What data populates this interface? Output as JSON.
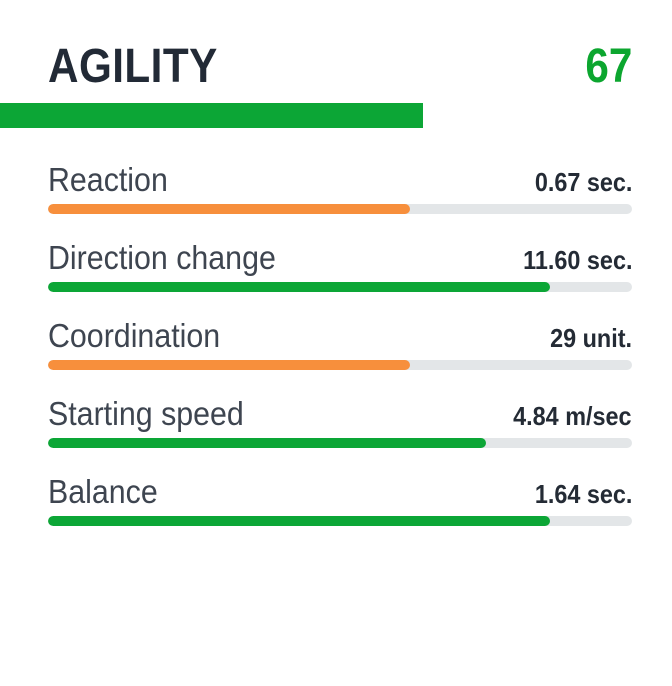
{
  "header": {
    "title": "AGILITY",
    "score": "67",
    "score_percent": 67
  },
  "colors": {
    "background": "#FFFFFF",
    "green": "#0CA636",
    "orange": "#F78F3C",
    "track": "#E3E6E8",
    "title_text": "#222A36",
    "score_text": "#0CA62F",
    "label_text": "#3E4550",
    "value_text": "#242B35"
  },
  "metrics": [
    {
      "label": "Reaction",
      "value": "0.67 sec.",
      "percent": 62,
      "color": "orange"
    },
    {
      "label": "Direction change",
      "value": "11.60 sec.",
      "percent": 86,
      "color": "green"
    },
    {
      "label": "Coordination",
      "value": "29 unit.",
      "percent": 62,
      "color": "orange"
    },
    {
      "label": "Starting speed",
      "value": "4.84 m/sec",
      "percent": 75,
      "color": "green"
    },
    {
      "label": "Balance",
      "value": "1.64 sec.",
      "percent": 86,
      "color": "green"
    }
  ]
}
